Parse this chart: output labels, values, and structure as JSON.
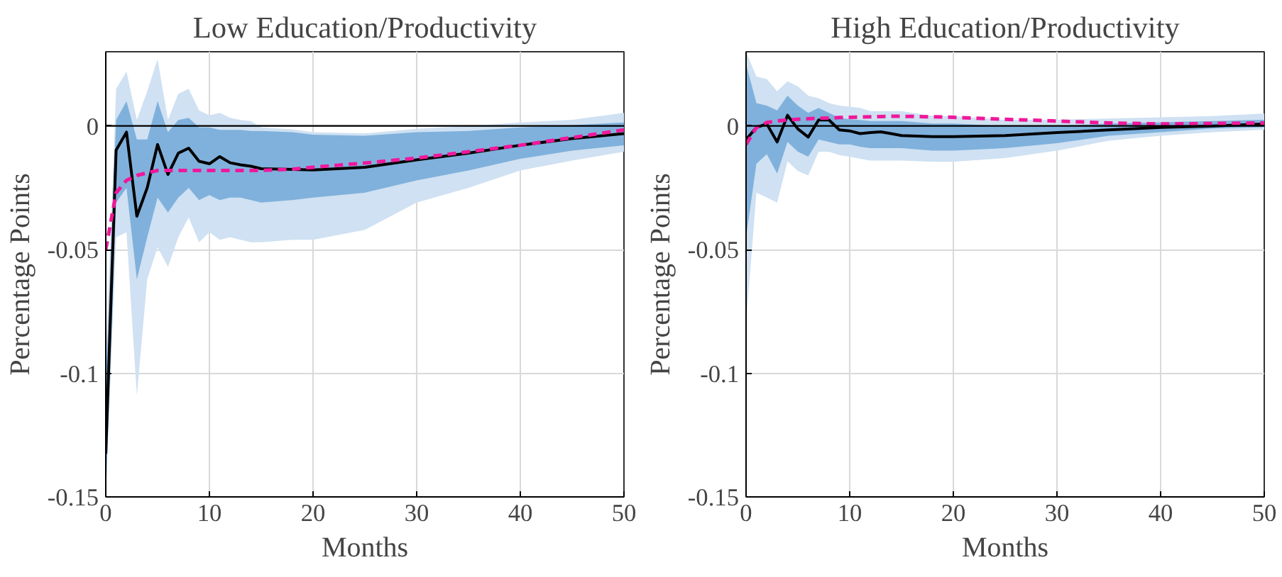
{
  "chart_data": [
    {
      "type": "line",
      "title": "Low Education/Productivity",
      "xlabel": "Months",
      "ylabel": "Percentage Points",
      "x": [
        0,
        1,
        2,
        3,
        4,
        5,
        6,
        7,
        8,
        9,
        10,
        11,
        12,
        13,
        14,
        15,
        18,
        20,
        25,
        30,
        35,
        40,
        45,
        50
      ],
      "xlim": [
        0,
        50
      ],
      "xticks": [
        0,
        10,
        20,
        30,
        40,
        50
      ],
      "ylim": [
        -0.15,
        0.03
      ],
      "yticks": [
        -0.15,
        -0.1,
        -0.05,
        0
      ],
      "grid": true,
      "ref_lines": [
        {
          "axis": "y",
          "value": 0,
          "color": "#000000"
        }
      ],
      "series": [
        {
          "type": "area",
          "color": "#cfe1f2",
          "values": [
            null,
            null,
            null,
            null,
            null,
            null,
            null,
            null,
            null,
            null,
            null,
            null,
            null,
            null,
            null,
            null,
            null,
            null,
            null,
            null,
            null,
            null,
            null,
            null
          ],
          "upper": [
            -0.095,
            0.015,
            0.022,
            0.0024,
            0.014,
            0.027,
            0.0024,
            0.013,
            0.015,
            0.0063,
            0.0043,
            0.0053,
            0.0033,
            0.0024,
            0.002,
            -0.0006,
            -0.0014,
            -0.0025,
            -0.003,
            -0.0012,
            0.0,
            0.0014,
            0.0025,
            0.0053
          ],
          "lower": [
            -0.15,
            -0.045,
            -0.043,
            -0.109,
            -0.062,
            -0.049,
            -0.057,
            -0.045,
            -0.037,
            -0.047,
            -0.043,
            -0.046,
            -0.045,
            -0.046,
            -0.047,
            -0.047,
            -0.046,
            -0.046,
            -0.042,
            -0.031,
            -0.025,
            -0.018,
            -0.014,
            -0.0104
          ]
        },
        {
          "type": "area",
          "color": "#80b1dc",
          "values": [
            null,
            null,
            null,
            null,
            null,
            null,
            null,
            null,
            null,
            null,
            null,
            null,
            null,
            null,
            null,
            null,
            null,
            null,
            null,
            null,
            null,
            null,
            null,
            null
          ],
          "upper": [
            -0.105,
            0.0024,
            0.01,
            -0.0055,
            -0.0055,
            0.01,
            -0.0025,
            0.0024,
            0.0033,
            -0.0006,
            -0.0006,
            -0.0016,
            -0.0016,
            -0.0016,
            -0.002,
            -0.002,
            -0.0025,
            -0.0035,
            -0.004,
            -0.0025,
            -0.002,
            -0.0006,
            0.0003,
            0.0014
          ],
          "lower": [
            -0.15,
            -0.031,
            -0.025,
            -0.062,
            -0.045,
            -0.029,
            -0.035,
            -0.029,
            -0.025,
            -0.03,
            -0.028,
            -0.03,
            -0.029,
            -0.029,
            -0.03,
            -0.031,
            -0.03,
            -0.029,
            -0.027,
            -0.022,
            -0.018,
            -0.0133,
            -0.01,
            -0.0078
          ]
        },
        {
          "color": "#000000",
          "line_style": "solid",
          "values": [
            -0.1325,
            -0.0098,
            -0.0025,
            -0.0365,
            -0.025,
            -0.0075,
            -0.0196,
            -0.011,
            -0.009,
            -0.0143,
            -0.0153,
            -0.0124,
            -0.0149,
            -0.0157,
            -0.0163,
            -0.0173,
            -0.0176,
            -0.0178,
            -0.0167,
            -0.0137,
            -0.011,
            -0.0078,
            -0.0051,
            -0.0031
          ]
        },
        {
          "color": "#f0189a",
          "line_style": "dashed",
          "values": [
            -0.05,
            -0.027,
            -0.022,
            -0.02,
            -0.019,
            -0.018,
            -0.018,
            -0.018,
            -0.018,
            -0.018,
            -0.018,
            -0.018,
            -0.018,
            -0.018,
            -0.018,
            -0.018,
            -0.0175,
            -0.0167,
            -0.015,
            -0.013,
            -0.0104,
            -0.0078,
            -0.0047,
            -0.0016
          ]
        }
      ]
    },
    {
      "type": "line",
      "title": "High Education/Productivity",
      "xlabel": "Months",
      "ylabel": "Percentage Points",
      "x": [
        0,
        1,
        2,
        3,
        4,
        5,
        6,
        7,
        8,
        9,
        10,
        11,
        12,
        13,
        14,
        15,
        18,
        20,
        25,
        30,
        35,
        40,
        45,
        50
      ],
      "xlim": [
        0,
        50
      ],
      "xticks": [
        0,
        10,
        20,
        30,
        40,
        50
      ],
      "ylim": [
        -0.15,
        0.03
      ],
      "yticks": [
        -0.15,
        -0.1,
        -0.05,
        0
      ],
      "grid": true,
      "ref_lines": [
        {
          "axis": "y",
          "value": 0,
          "color": "#000000"
        }
      ],
      "series": [
        {
          "type": "area",
          "color": "#cfe1f2",
          "values": [
            null,
            null,
            null,
            null,
            null,
            null,
            null,
            null,
            null,
            null,
            null,
            null,
            null,
            null,
            null,
            null,
            null,
            null,
            null,
            null,
            null,
            null,
            null,
            null
          ],
          "upper": [
            0.03,
            0.02,
            0.019,
            0.014,
            0.018,
            0.016,
            0.0122,
            0.0112,
            0.0092,
            0.0082,
            0.0078,
            0.0073,
            0.006,
            0.006,
            0.006,
            0.006,
            0.004,
            0.004,
            0.0025,
            0.0025,
            0.003,
            0.0035,
            0.004,
            0.005
          ],
          "lower": [
            -0.08,
            -0.027,
            -0.029,
            -0.031,
            -0.0143,
            -0.0182,
            -0.02,
            -0.0104,
            -0.0104,
            -0.0118,
            -0.0124,
            -0.0133,
            -0.014,
            -0.014,
            -0.014,
            -0.014,
            -0.0145,
            -0.0145,
            -0.013,
            -0.01,
            -0.006,
            -0.004,
            -0.0025,
            -0.0015
          ]
        },
        {
          "type": "area",
          "color": "#80b1dc",
          "values": [
            null,
            null,
            null,
            null,
            null,
            null,
            null,
            null,
            null,
            null,
            null,
            null,
            null,
            null,
            null,
            null,
            null,
            null,
            null,
            null,
            null,
            null,
            null,
            null
          ],
          "upper": [
            0.025,
            0.0092,
            0.0082,
            0.0063,
            0.0122,
            0.0082,
            0.0053,
            0.0073,
            0.0053,
            0.0033,
            0.0027,
            0.0024,
            0.002,
            0.002,
            0.002,
            0.002,
            0.001,
            0.001,
            0.0,
            0.0,
            0.001,
            0.0015,
            0.002,
            0.0025
          ],
          "lower": [
            -0.045,
            -0.0153,
            -0.0114,
            -0.0192,
            -0.0065,
            -0.0104,
            -0.0124,
            -0.0055,
            -0.0065,
            -0.0075,
            -0.0075,
            -0.0084,
            -0.009,
            -0.009,
            -0.009,
            -0.009,
            -0.01,
            -0.01,
            -0.009,
            -0.007,
            -0.004,
            -0.0025,
            -0.001,
            -0.0005
          ]
        },
        {
          "color": "#000000",
          "line_style": "solid",
          "values": [
            -0.0055,
            -0.0006,
            0.0008,
            -0.0065,
            0.0043,
            -0.0012,
            -0.0045,
            0.0024,
            0.0024,
            -0.0016,
            -0.002,
            -0.0031,
            -0.0027,
            -0.0024,
            -0.0031,
            -0.0039,
            -0.0043,
            -0.0043,
            -0.0039,
            -0.0027,
            -0.0016,
            -0.0006,
            0.0,
            0.0008
          ]
        },
        {
          "color": "#f0189a",
          "line_style": "dashed",
          "values": [
            -0.0075,
            -0.0006,
            0.0014,
            0.002,
            0.0024,
            0.0027,
            0.0029,
            0.0031,
            0.0032,
            0.0034,
            0.0035,
            0.0036,
            0.0037,
            0.0038,
            0.0039,
            0.0039,
            0.0037,
            0.0035,
            0.0027,
            0.002,
            0.0012,
            0.0008,
            0.001,
            0.0012
          ]
        }
      ]
    }
  ]
}
